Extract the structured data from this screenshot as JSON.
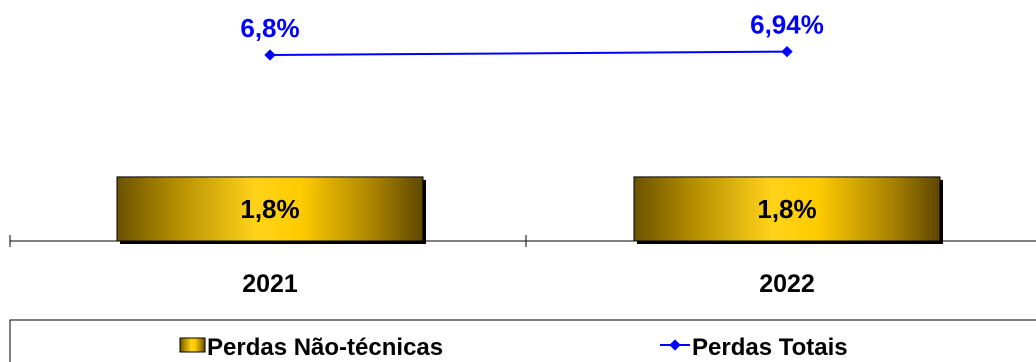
{
  "chart_data": {
    "type": "bar",
    "categories": [
      "2021",
      "2022"
    ],
    "series": [
      {
        "name": "Perdas Não-técnicas",
        "kind": "bar",
        "values": [
          1.8,
          1.8
        ],
        "labels": [
          "1,8%",
          "1,8%"
        ],
        "color": "#C9A000"
      },
      {
        "name": "Perdas Totais",
        "kind": "line",
        "values": [
          6.8,
          6.94
        ],
        "labels": [
          "6,8%",
          "6,94%"
        ],
        "color": "#0000FF"
      }
    ],
    "title": "",
    "xlabel": "",
    "ylabel": "",
    "grid": false,
    "legend_position": "bottom"
  }
}
